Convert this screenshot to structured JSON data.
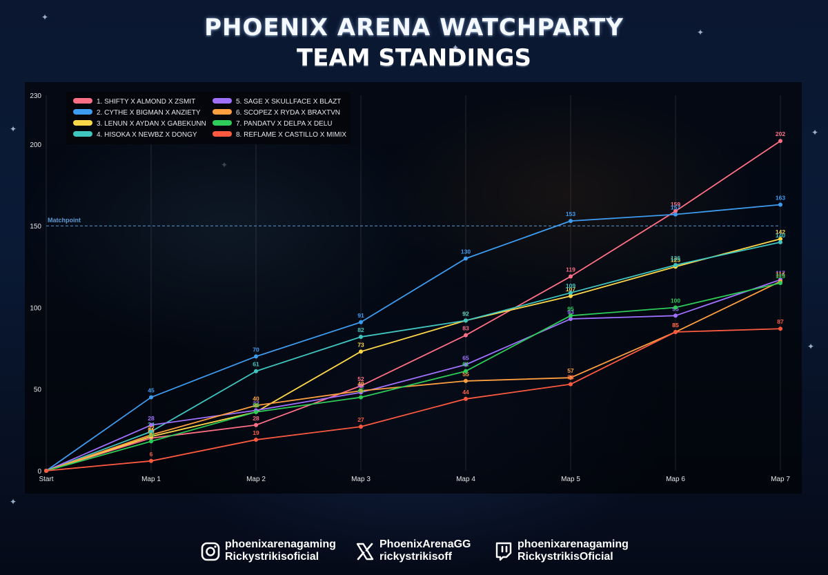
{
  "header": {
    "title": "PHOENIX ARENA WATCHPARTY",
    "subtitle": "TEAM STANDINGS"
  },
  "chart_data": {
    "type": "line",
    "title": "",
    "xlabel": "",
    "ylabel": "",
    "categories": [
      "Start",
      "Map 1",
      "Map 2",
      "Map 3",
      "Map 4",
      "Map 5",
      "Map 6",
      "Map 7"
    ],
    "ylim": [
      0,
      230
    ],
    "yticks": [
      0,
      50,
      100,
      150,
      200,
      230
    ],
    "grid": "vertical",
    "legend_position": "top-left",
    "reference_line": {
      "value": 150,
      "label": "Matchpoint",
      "color": "#5b9bd5"
    },
    "series": [
      {
        "name": "1. SHIFTY X ALMOND X ZSMIT",
        "color": "#ff6f86",
        "values": [
          0,
          20,
          28,
          52,
          83,
          119,
          159,
          202
        ]
      },
      {
        "name": "2. CYTHE X BIGMAN X ANZIETY",
        "color": "#3d9cf0",
        "values": [
          0,
          45,
          70,
          91,
          130,
          153,
          157,
          163
        ]
      },
      {
        "name": "3. LENUN X AYDAN X GABEKUNN",
        "color": "#ffd84a",
        "values": [
          0,
          21,
          36,
          73,
          92,
          107,
          125,
          142
        ]
      },
      {
        "name": "4. HISOKA X NEWBZ X DONGY",
        "color": "#3fc6c0",
        "values": [
          0,
          24,
          61,
          82,
          92,
          109,
          126,
          140
        ]
      },
      {
        "name": "5. SAGE X SKULLFACE X BLAZT",
        "color": "#a070ff",
        "values": [
          0,
          28,
          37,
          48,
          65,
          93,
          95,
          117
        ]
      },
      {
        "name": "6. SCOPEZ X RYDA X BRAXTVN",
        "color": "#ff9f40",
        "values": [
          0,
          22,
          40,
          49,
          55,
          57,
          85,
          116
        ]
      },
      {
        "name": "7. PANDATV X DELPA X DELU",
        "color": "#2ecc58",
        "values": [
          0,
          18,
          36,
          45,
          61,
          95,
          100,
          115
        ]
      },
      {
        "name": "8. REFLAME X CASTILLO X MIMIX",
        "color": "#ff5a40",
        "values": [
          0,
          6,
          19,
          27,
          44,
          53,
          85,
          87
        ]
      }
    ]
  },
  "footer": {
    "instagram": {
      "icon": "instagram-icon",
      "line1": "phoenixarenagaming",
      "line2": "Rickystrikisoficial"
    },
    "x": {
      "icon": "x-logo-icon",
      "line1": "PhoenixArenaGG",
      "line2": "rickystrikisoff"
    },
    "twitch": {
      "icon": "twitch-icon",
      "line1": "phoenixarenagaming",
      "line2": "RickystrikisOficial"
    }
  }
}
